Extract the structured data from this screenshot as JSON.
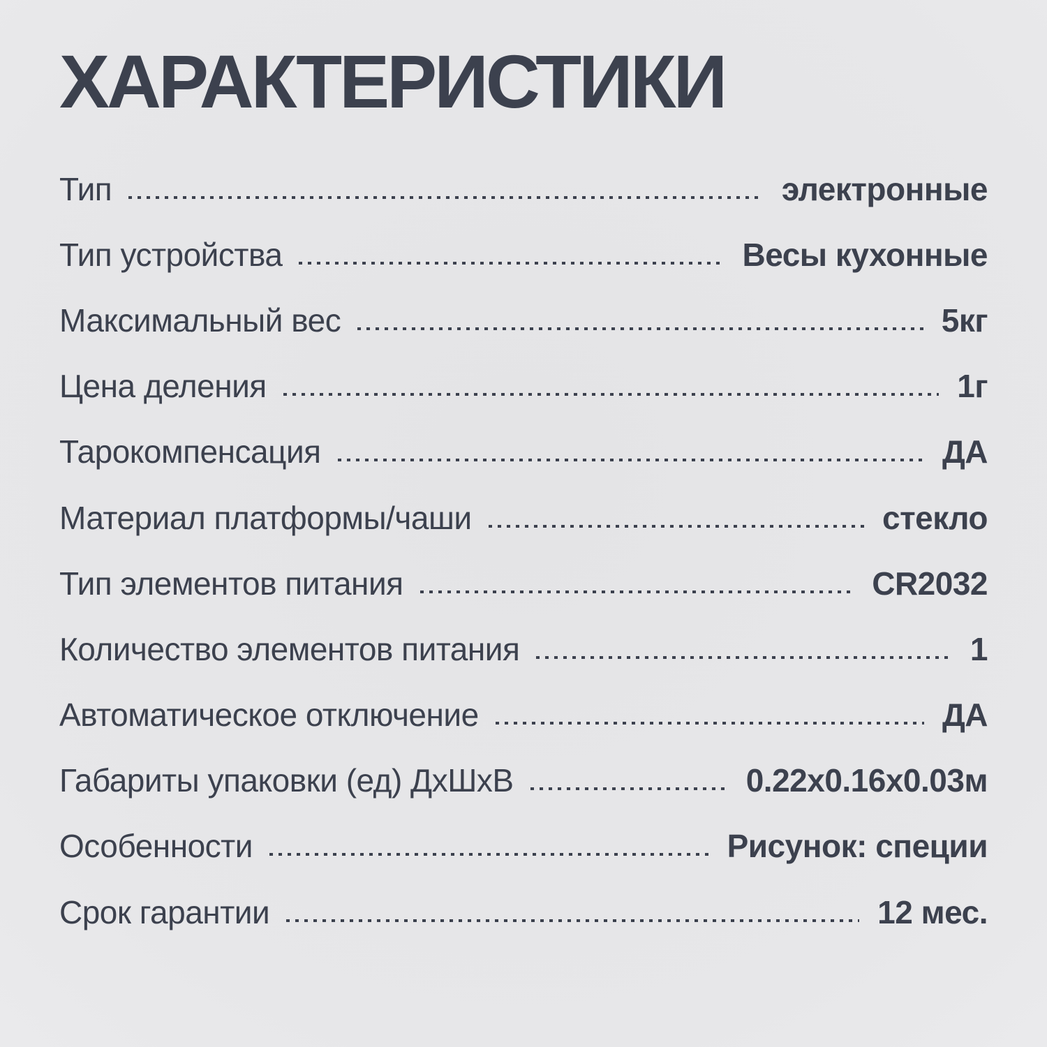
{
  "page": {
    "title": "ХАРАКТЕРИСТИКИ"
  },
  "colors": {
    "background": "#e6e6e8",
    "text": "#3c414e"
  },
  "specs": [
    {
      "label": "Тип",
      "value": "электронные"
    },
    {
      "label": "Тип устройства",
      "value": "Весы кухонные"
    },
    {
      "label": "Максимальный вес",
      "value": "5кг"
    },
    {
      "label": "Цена деления",
      "value": "1г"
    },
    {
      "label": "Тарокомпенсация",
      "value": "ДА"
    },
    {
      "label": "Материал платформы/чаши",
      "value": "стекло"
    },
    {
      "label": "Тип элементов питания",
      "value": "CR2032"
    },
    {
      "label": "Количество элементов питания",
      "value": "1"
    },
    {
      "label": "Автоматическое отключение",
      "value": "ДА"
    },
    {
      "label": "Габариты упаковки (ед) ДхШхВ",
      "value": "0.22х0.16х0.03м"
    },
    {
      "label": "Особенности",
      "value": "Рисунок: специи"
    },
    {
      "label": "Срок гарантии",
      "value": "12 мес."
    }
  ]
}
